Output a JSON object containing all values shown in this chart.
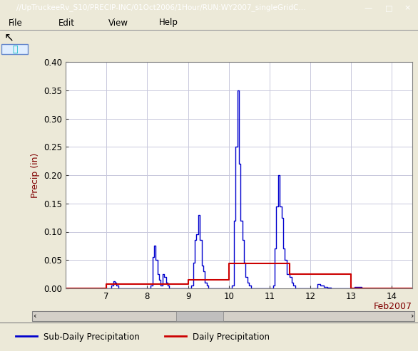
{
  "title_bar": "//UpTruckeeRv_S10/PRECIP-INC/01Oct2006/1Hour/RUN:WY2007_singleGridC...",
  "menu_items": [
    "File",
    "Edit",
    "View",
    "Help"
  ],
  "ylabel": "Precip (in)",
  "xlabel": "Feb2007",
  "ylim": [
    0.0,
    0.4
  ],
  "xlim_days": [
    6.0,
    14.5
  ],
  "xticks": [
    7,
    8,
    9,
    10,
    11,
    12,
    13,
    14
  ],
  "yticks": [
    0.0,
    0.05,
    0.1,
    0.15,
    0.2,
    0.25,
    0.3,
    0.35,
    0.4
  ],
  "blue_color": "#0000CD",
  "red_color": "#CC0000",
  "window_bg": "#ECE9D8",
  "plot_bg": "#FFFFFF",
  "grid_color": "#C8C8DC",
  "legend_labels": [
    "Sub-Daily Precipitation",
    "Daily Precipitation"
  ],
  "subdaily_x": [
    6.0,
    6.5,
    6.8,
    7.0,
    7.083,
    7.125,
    7.167,
    7.208,
    7.25,
    7.292,
    7.333,
    7.375,
    7.416,
    7.458,
    7.5,
    7.542,
    7.583,
    7.625,
    7.667,
    7.708,
    7.75,
    7.792,
    7.833,
    7.875,
    7.917,
    7.958,
    8.0,
    8.042,
    8.083,
    8.125,
    8.167,
    8.208,
    8.25,
    8.292,
    8.333,
    8.375,
    8.416,
    8.458,
    8.5,
    8.542,
    8.583,
    8.625,
    8.667,
    8.708,
    8.75,
    8.833,
    8.917,
    8.958,
    9.0,
    9.042,
    9.083,
    9.125,
    9.167,
    9.208,
    9.25,
    9.292,
    9.333,
    9.375,
    9.416,
    9.458,
    9.5,
    9.542,
    9.583,
    9.667,
    9.75,
    9.833,
    9.917,
    9.958,
    10.0,
    10.042,
    10.083,
    10.125,
    10.167,
    10.208,
    10.25,
    10.292,
    10.333,
    10.375,
    10.416,
    10.458,
    10.5,
    10.542,
    10.583,
    10.625,
    10.667,
    10.708,
    10.75,
    10.833,
    10.917,
    10.958,
    11.0,
    11.042,
    11.083,
    11.125,
    11.167,
    11.208,
    11.25,
    11.292,
    11.333,
    11.375,
    11.416,
    11.458,
    11.5,
    11.542,
    11.583,
    11.625,
    11.667,
    11.708,
    11.75,
    11.833,
    11.917,
    11.958,
    12.0,
    12.083,
    12.167,
    12.25,
    12.333,
    12.417,
    12.5,
    13.0,
    13.083,
    13.167,
    13.25,
    14.0,
    14.25,
    14.5
  ],
  "subdaily_y": [
    0.0,
    0.0,
    0.0,
    0.0,
    0.0,
    0.005,
    0.012,
    0.01,
    0.005,
    0.0,
    0.0,
    0.0,
    0.0,
    0.0,
    0.0,
    0.0,
    0.0,
    0.0,
    0.0,
    0.0,
    0.0,
    0.0,
    0.0,
    0.0,
    0.0,
    0.0,
    0.0,
    0.0,
    0.005,
    0.055,
    0.075,
    0.05,
    0.025,
    0.015,
    0.005,
    0.025,
    0.02,
    0.01,
    0.005,
    0.0,
    0.0,
    0.0,
    0.0,
    0.0,
    0.0,
    0.0,
    0.0,
    0.0,
    0.0,
    0.0,
    0.005,
    0.045,
    0.085,
    0.095,
    0.13,
    0.085,
    0.04,
    0.03,
    0.01,
    0.005,
    0.0,
    0.0,
    0.0,
    0.0,
    0.0,
    0.0,
    0.0,
    0.0,
    0.0,
    0.0,
    0.005,
    0.12,
    0.25,
    0.35,
    0.22,
    0.12,
    0.085,
    0.045,
    0.02,
    0.01,
    0.005,
    0.0,
    0.0,
    0.0,
    0.0,
    0.0,
    0.0,
    0.0,
    0.0,
    0.0,
    0.0,
    0.0,
    0.005,
    0.07,
    0.145,
    0.2,
    0.145,
    0.125,
    0.07,
    0.05,
    0.025,
    0.025,
    0.02,
    0.01,
    0.005,
    0.0,
    0.0,
    0.0,
    0.0,
    0.0,
    0.0,
    0.0,
    0.0,
    0.0,
    0.008,
    0.005,
    0.002,
    0.001,
    0.0,
    0.0,
    0.003,
    0.002,
    0.0,
    0.0,
    0.0,
    0.0
  ],
  "daily_x": [
    6.0,
    7.0,
    8.0,
    9.0,
    9.5,
    10.0,
    11.0,
    11.5,
    12.0,
    13.0,
    14.0,
    14.5
  ],
  "daily_y": [
    0.0,
    0.008,
    0.008,
    0.015,
    0.015,
    0.044,
    0.044,
    0.025,
    0.025,
    0.0,
    0.0,
    0.0
  ]
}
